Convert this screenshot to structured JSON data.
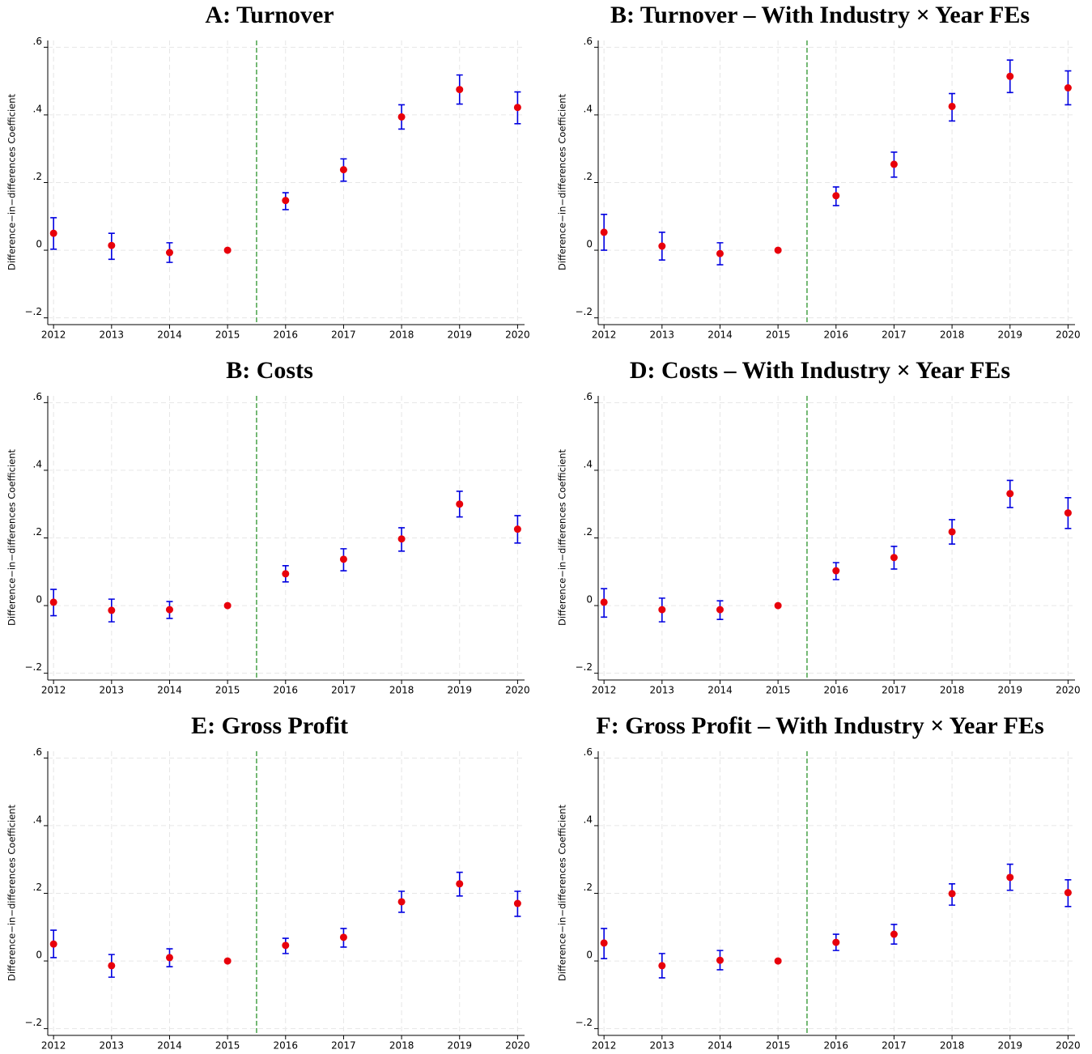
{
  "chart_data": [
    {
      "type": "errorbar",
      "title": "A: Turnover",
      "ylabel": "Difference−in−differences Coefficient",
      "x": [
        2012,
        2013,
        2014,
        2015,
        2016,
        2017,
        2018,
        2019,
        2020
      ],
      "values": [
        0.05,
        0.014,
        -0.007,
        0,
        0.147,
        0.238,
        0.394,
        0.475,
        0.422
      ],
      "lower": [
        0.003,
        -0.027,
        -0.036,
        0,
        0.12,
        0.204,
        0.358,
        0.432,
        0.374
      ],
      "upper": [
        0.096,
        0.05,
        0.022,
        0,
        0.17,
        0.27,
        0.43,
        0.518,
        0.468
      ],
      "color": "#e8000b",
      "errorbar_color": "#0000e0",
      "vline": 2015.5,
      "vline_color": "#1a8a1a",
      "xlim": [
        2011.9,
        2020.12
      ],
      "ylim": [
        -0.22,
        0.62
      ],
      "xticks": [
        2012,
        2013,
        2014,
        2015,
        2016,
        2017,
        2018,
        2019,
        2020
      ],
      "yticks": [
        {
          "value": -0.2,
          "label": "−.2"
        },
        0,
        {
          "value": 0.2,
          "label": ".2"
        },
        {
          "value": 0.4,
          "label": ".4"
        },
        {
          "value": 0.6,
          "label": ".6"
        }
      ],
      "grid": true
    },
    {
      "type": "errorbar",
      "title": "B: Turnover – With Industry × Year FEs",
      "ylabel": "Difference−in−differences Coefficient",
      "x": [
        2012,
        2013,
        2014,
        2015,
        2016,
        2017,
        2018,
        2019,
        2020
      ],
      "values": [
        0.053,
        0.012,
        -0.01,
        0,
        0.161,
        0.254,
        0.425,
        0.514,
        0.48
      ],
      "lower": [
        0.0,
        -0.029,
        -0.043,
        0,
        0.132,
        0.216,
        0.382,
        0.466,
        0.43
      ],
      "upper": [
        0.106,
        0.053,
        0.022,
        0,
        0.187,
        0.29,
        0.463,
        0.562,
        0.53
      ],
      "color": "#e8000b",
      "errorbar_color": "#0000e0",
      "vline": 2015.5,
      "vline_color": "#1a8a1a",
      "xlim": [
        2011.9,
        2020.12
      ],
      "ylim": [
        -0.22,
        0.62
      ],
      "xticks": [
        2012,
        2013,
        2014,
        2015,
        2016,
        2017,
        2018,
        2019,
        2020
      ],
      "yticks": [
        {
          "value": -0.2,
          "label": "−.2"
        },
        0,
        {
          "value": 0.2,
          "label": ".2"
        },
        {
          "value": 0.4,
          "label": ".4"
        },
        {
          "value": 0.6,
          "label": ".6"
        }
      ],
      "grid": true
    },
    {
      "type": "errorbar",
      "title": "B: Costs",
      "ylabel": "Difference−in−differences Coefficient",
      "x": [
        2012,
        2013,
        2014,
        2015,
        2016,
        2017,
        2018,
        2019,
        2020
      ],
      "values": [
        0.01,
        -0.014,
        -0.012,
        0,
        0.094,
        0.137,
        0.197,
        0.3,
        0.226
      ],
      "lower": [
        -0.03,
        -0.048,
        -0.038,
        0,
        0.07,
        0.103,
        0.161,
        0.262,
        0.185
      ],
      "upper": [
        0.048,
        0.019,
        0.012,
        0,
        0.118,
        0.168,
        0.23,
        0.338,
        0.266
      ],
      "color": "#e8000b",
      "errorbar_color": "#0000e0",
      "vline": 2015.5,
      "vline_color": "#1a8a1a",
      "xlim": [
        2011.9,
        2020.12
      ],
      "ylim": [
        -0.22,
        0.62
      ],
      "xticks": [
        2012,
        2013,
        2014,
        2015,
        2016,
        2017,
        2018,
        2019,
        2020
      ],
      "yticks": [
        {
          "value": -0.2,
          "label": "−.2"
        },
        0,
        {
          "value": 0.2,
          "label": ".2"
        },
        {
          "value": 0.4,
          "label": ".4"
        },
        {
          "value": 0.6,
          "label": ".6"
        }
      ],
      "grid": true
    },
    {
      "type": "errorbar",
      "title": "D: Costs – With Industry × Year FEs",
      "ylabel": "Difference−in−differences Coefficient",
      "x": [
        2012,
        2013,
        2014,
        2015,
        2016,
        2017,
        2018,
        2019,
        2020
      ],
      "values": [
        0.01,
        -0.012,
        -0.012,
        0,
        0.103,
        0.142,
        0.218,
        0.331,
        0.274
      ],
      "lower": [
        -0.034,
        -0.048,
        -0.041,
        0,
        0.077,
        0.108,
        0.182,
        0.29,
        0.228
      ],
      "upper": [
        0.05,
        0.022,
        0.014,
        0,
        0.127,
        0.175,
        0.254,
        0.37,
        0.319
      ],
      "color": "#e8000b",
      "errorbar_color": "#0000e0",
      "vline": 2015.5,
      "vline_color": "#1a8a1a",
      "xlim": [
        2011.9,
        2020.12
      ],
      "ylim": [
        -0.22,
        0.62
      ],
      "xticks": [
        2012,
        2013,
        2014,
        2015,
        2016,
        2017,
        2018,
        2019,
        2020
      ],
      "yticks": [
        {
          "value": -0.2,
          "label": "−.2"
        },
        0,
        {
          "value": 0.2,
          "label": ".2"
        },
        {
          "value": 0.4,
          "label": ".4"
        },
        {
          "value": 0.6,
          "label": ".6"
        }
      ],
      "grid": true
    },
    {
      "type": "errorbar",
      "title": "E: Gross Profit",
      "ylabel": "Difference−in−differences Coefficient",
      "x": [
        2012,
        2013,
        2014,
        2015,
        2016,
        2017,
        2018,
        2019,
        2020
      ],
      "values": [
        0.05,
        -0.014,
        0.01,
        0,
        0.046,
        0.07,
        0.175,
        0.228,
        0.17
      ],
      "lower": [
        0.01,
        -0.048,
        -0.017,
        0,
        0.022,
        0.041,
        0.144,
        0.192,
        0.132
      ],
      "upper": [
        0.091,
        0.019,
        0.036,
        0,
        0.067,
        0.096,
        0.206,
        0.262,
        0.206
      ],
      "color": "#e8000b",
      "errorbar_color": "#0000e0",
      "vline": 2015.5,
      "vline_color": "#1a8a1a",
      "xlim": [
        2011.9,
        2020.12
      ],
      "ylim": [
        -0.22,
        0.62
      ],
      "xticks": [
        2012,
        2013,
        2014,
        2015,
        2016,
        2017,
        2018,
        2019,
        2020
      ],
      "yticks": [
        {
          "value": -0.2,
          "label": "−.2"
        },
        0,
        {
          "value": 0.2,
          "label": ".2"
        },
        {
          "value": 0.4,
          "label": ".4"
        },
        {
          "value": 0.6,
          "label": ".6"
        }
      ],
      "grid": true
    },
    {
      "type": "errorbar",
      "title": "F: Gross Profit – With Industry × Year FEs",
      "ylabel": "Difference−in−differences Coefficient",
      "x": [
        2012,
        2013,
        2014,
        2015,
        2016,
        2017,
        2018,
        2019,
        2020
      ],
      "values": [
        0.053,
        -0.014,
        0.002,
        0,
        0.055,
        0.079,
        0.199,
        0.247,
        0.202
      ],
      "lower": [
        0.007,
        -0.05,
        -0.026,
        0,
        0.031,
        0.05,
        0.165,
        0.209,
        0.161
      ],
      "upper": [
        0.096,
        0.022,
        0.031,
        0,
        0.079,
        0.108,
        0.228,
        0.286,
        0.24
      ],
      "color": "#e8000b",
      "errorbar_color": "#0000e0",
      "vline": 2015.5,
      "vline_color": "#1a8a1a",
      "xlim": [
        2011.9,
        2020.12
      ],
      "ylim": [
        -0.22,
        0.62
      ],
      "xticks": [
        2012,
        2013,
        2014,
        2015,
        2016,
        2017,
        2018,
        2019,
        2020
      ],
      "yticks": [
        {
          "value": -0.2,
          "label": "−.2"
        },
        0,
        {
          "value": 0.2,
          "label": ".2"
        },
        {
          "value": 0.4,
          "label": ".4"
        },
        {
          "value": 0.6,
          "label": ".6"
        }
      ],
      "grid": true
    }
  ]
}
